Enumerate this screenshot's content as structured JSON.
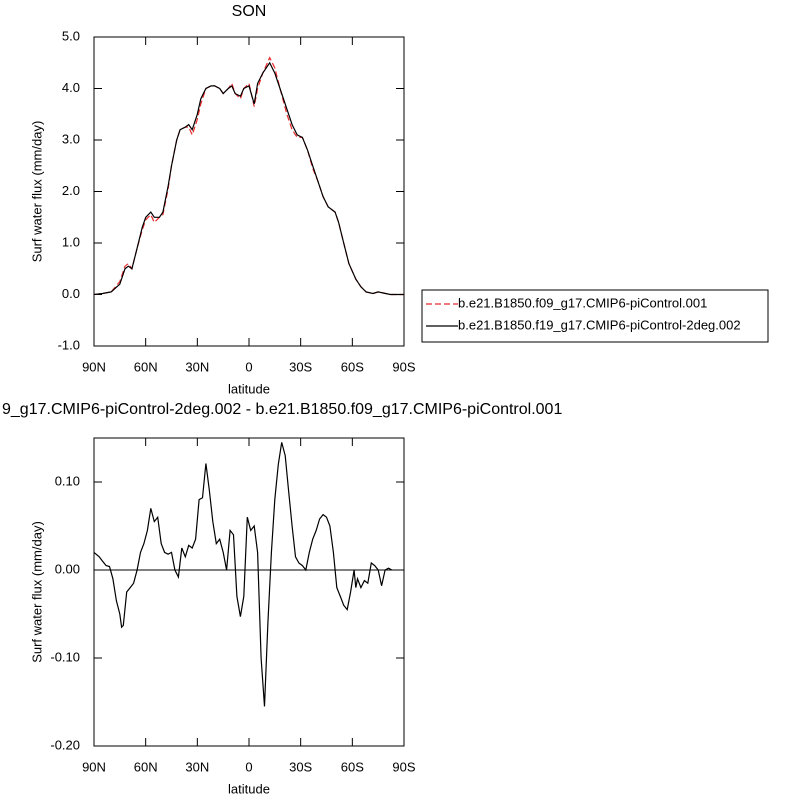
{
  "chart_data": [
    {
      "type": "line",
      "title": "SON",
      "xlabel": "latitude",
      "ylabel": "Surf water flux (mm/day)",
      "xlim": [
        90,
        -90
      ],
      "xticks": [
        {
          "value": 90,
          "label": "90N"
        },
        {
          "value": 60,
          "label": "60N"
        },
        {
          "value": 30,
          "label": "30N"
        },
        0,
        {
          "value": -30,
          "label": "30S"
        },
        {
          "value": -60,
          "label": "60S"
        },
        {
          "value": -90,
          "label": "90S"
        }
      ],
      "ylim": [
        -1,
        5
      ],
      "yticks": [
        {
          "value": -1,
          "label": "-1.0"
        },
        {
          "value": 0,
          "label": "0.0"
        },
        {
          "value": 1,
          "label": "1.0"
        },
        {
          "value": 2,
          "label": "2.0"
        },
        {
          "value": 3,
          "label": "3.0"
        },
        {
          "value": 4,
          "label": "4.0"
        },
        {
          "value": 5,
          "label": "5.0"
        }
      ],
      "x": [
        90,
        85,
        80,
        75,
        72,
        70,
        68,
        65,
        62,
        60,
        57,
        55,
        52,
        50,
        47,
        45,
        42,
        40,
        37,
        35,
        33,
        30,
        28,
        25,
        22,
        20,
        17,
        15,
        12,
        10,
        8,
        5,
        3,
        0,
        -3,
        -5,
        -8,
        -12,
        -15,
        -18,
        -22,
        -25,
        -28,
        -31,
        -34,
        -37,
        -40,
        -43,
        -46,
        -50,
        -52,
        -55,
        -58,
        -62,
        -65,
        -68,
        -72,
        -75,
        -78,
        -82,
        -85,
        -90
      ],
      "series": [
        {
          "name": "b.e21.B1850.f09_g17.CMIP6-piControl.001",
          "color": "#e8282b",
          "dashed": true,
          "values": [
            0,
            0.02,
            0.05,
            0.25,
            0.55,
            0.6,
            0.5,
            0.9,
            1.25,
            1.45,
            1.55,
            1.4,
            1.5,
            1.55,
            2.05,
            2.5,
            3.0,
            3.2,
            3.25,
            3.25,
            3.1,
            3.4,
            3.7,
            4.0,
            4.05,
            4.05,
            4.0,
            3.9,
            4.0,
            4.1,
            3.9,
            3.8,
            4.0,
            4.1,
            3.65,
            4.0,
            4.3,
            4.6,
            4.4,
            4.0,
            3.5,
            3.2,
            3.05,
            3.05,
            2.8,
            2.45,
            2.2,
            1.9,
            1.7,
            1.6,
            1.4,
            1.0,
            0.6,
            0.3,
            0.15,
            0.05,
            0.02,
            0.05,
            0.03,
            0,
            0,
            0
          ]
        },
        {
          "name": "b.e21.B1850.f19_g17.CMIP6-piControl-2deg.002",
          "color": "#000000",
          "dashed": false,
          "values": [
            0,
            0.02,
            0.05,
            0.2,
            0.5,
            0.55,
            0.5,
            0.9,
            1.3,
            1.5,
            1.6,
            1.5,
            1.5,
            1.6,
            2.1,
            2.5,
            3.0,
            3.2,
            3.25,
            3.3,
            3.2,
            3.5,
            3.8,
            4.0,
            4.05,
            4.05,
            4.0,
            3.9,
            4.0,
            4.05,
            3.9,
            3.85,
            4.0,
            4.05,
            3.7,
            4.1,
            4.3,
            4.5,
            4.3,
            4.0,
            3.6,
            3.3,
            3.1,
            3.05,
            2.8,
            2.5,
            2.2,
            1.9,
            1.7,
            1.6,
            1.4,
            1.0,
            0.6,
            0.3,
            0.15,
            0.05,
            0.02,
            0.05,
            0.03,
            0,
            0,
            0
          ]
        }
      ]
    },
    {
      "type": "line",
      "title": "9_g17.CMIP6-piControl-2deg.002 - b.e21.B1850.f09_g17.CMIP6-piControl.001",
      "xlabel": "latitude",
      "ylabel": "Surf water flux (mm/day)",
      "xlim": [
        90,
        -90
      ],
      "xticks": [
        {
          "value": 90,
          "label": "90N"
        },
        {
          "value": 60,
          "label": "60N"
        },
        {
          "value": 30,
          "label": "30N"
        },
        0,
        {
          "value": -30,
          "label": "30S"
        },
        {
          "value": -60,
          "label": "60S"
        },
        {
          "value": -90,
          "label": "90S"
        }
      ],
      "ylim": [
        -0.2,
        0.15
      ],
      "yticks": [
        {
          "value": -0.2,
          "label": "-0.20"
        },
        {
          "value": -0.1,
          "label": "-0.10"
        },
        {
          "value": 0,
          "label": "0.00"
        },
        {
          "value": 0.1,
          "label": "0.10"
        }
      ],
      "zero_line": true,
      "x": [
        90,
        87,
        85,
        83,
        81,
        79,
        77,
        75,
        74,
        73,
        71,
        69,
        67,
        65,
        63,
        61,
        59,
        57,
        55,
        53,
        51,
        49,
        47,
        45,
        43,
        41,
        39,
        37,
        35,
        33,
        31,
        29,
        27,
        25,
        23,
        21,
        19,
        17,
        15,
        13,
        11,
        9,
        7,
        5,
        3,
        1,
        -1,
        -3,
        -5,
        -7,
        -9,
        -11,
        -13,
        -15,
        -17,
        -19,
        -21,
        -23,
        -25,
        -27,
        -29,
        -31,
        -33,
        -35,
        -37,
        -39,
        -41,
        -43,
        -45,
        -47,
        -49,
        -51,
        -53,
        -55,
        -57,
        -59,
        -61,
        -62,
        -63,
        -65,
        -67,
        -69,
        -71,
        -73,
        -75,
        -77,
        -79,
        -81,
        -83
      ],
      "series": [
        {
          "color": "#000000",
          "values": [
            0.02,
            0.015,
            0.01,
            0.005,
            0.004,
            -0.01,
            -0.035,
            -0.05,
            -0.065,
            -0.063,
            -0.025,
            -0.02,
            -0.015,
            0,
            0.02,
            0.03,
            0.045,
            0.07,
            0.055,
            0.06,
            0.03,
            0.02,
            0.018,
            0.02,
            0,
            -0.008,
            0.025,
            0.015,
            0.028,
            0.025,
            0.035,
            0.08,
            0.082,
            0.121,
            0.09,
            0.055,
            0.03,
            0.035,
            0.02,
            0,
            0.045,
            0.04,
            -0.03,
            -0.053,
            -0.03,
            0.06,
            0.045,
            0.05,
            0.02,
            -0.1,
            -0.155,
            -0.06,
            0.02,
            0.08,
            0.12,
            0.145,
            0.13,
            0.09,
            0.05,
            0.015,
            0.008,
            0.005,
            0,
            0.02,
            0.035,
            0.045,
            0.058,
            0.063,
            0.06,
            0.05,
            0.02,
            -0.02,
            -0.03,
            -0.04,
            -0.045,
            -0.025,
            0,
            -0.02,
            -0.01,
            -0.02,
            -0.012,
            -0.015,
            0.008,
            0.005,
            0,
            -0.018,
            0,
            0.002,
            0
          ]
        }
      ]
    }
  ]
}
